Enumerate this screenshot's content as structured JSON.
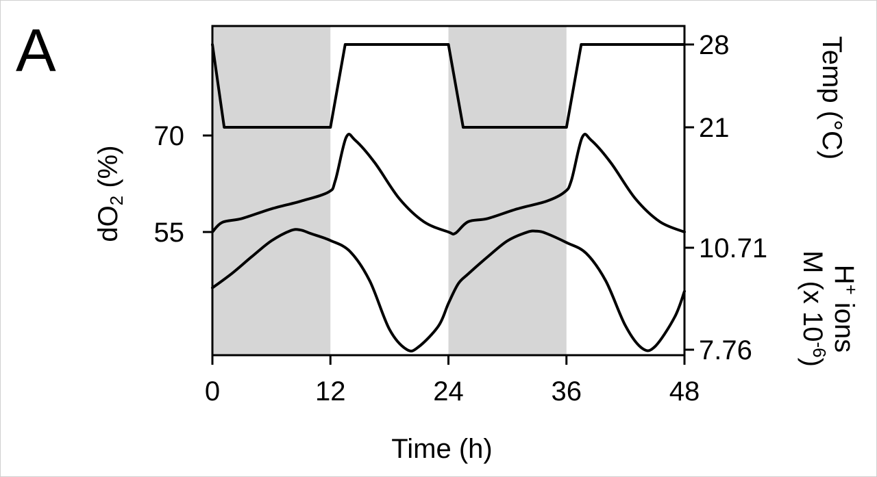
{
  "chart_data": {
    "type": "line",
    "panel_label": "A",
    "xlabel": "Time (h)",
    "x_ticks": [
      "0",
      "12",
      "24",
      "36",
      "48"
    ],
    "xlim": [
      0,
      48
    ],
    "dark_periods": [
      [
        0,
        12
      ],
      [
        24,
        36
      ]
    ],
    "left_axis": {
      "label": "dO",
      "label_sub": "2",
      "label_tail": " (%)",
      "ticks": [
        {
          "value": 70,
          "label": "70"
        },
        {
          "value": 55,
          "label": "55"
        }
      ]
    },
    "right_axes": [
      {
        "label": "Temp (°C)",
        "ticks": [
          {
            "value": 28,
            "label": "28"
          },
          {
            "value": 21,
            "label": "21"
          }
        ]
      },
      {
        "label_line1": "H",
        "label_line1_sup": "+",
        "label_line1_tail": " ions",
        "label_line2": "M (x 10",
        "label_line2_sup": "-6",
        "label_line2_tail": ")",
        "ticks": [
          {
            "value": 10.71,
            "label": "10.71"
          },
          {
            "value": 7.76,
            "label": "7.76"
          }
        ]
      }
    ],
    "series": [
      {
        "axis": "Temp (°C)",
        "points": [
          [
            0,
            28
          ],
          [
            1.2,
            21
          ],
          [
            12,
            21
          ],
          [
            13.5,
            28
          ],
          [
            24,
            28
          ],
          [
            25.5,
            21
          ],
          [
            36,
            21
          ],
          [
            37.5,
            28
          ],
          [
            48,
            28
          ]
        ]
      },
      {
        "axis": "dO2 (%)",
        "points": [
          [
            0,
            55
          ],
          [
            1,
            56.5
          ],
          [
            3,
            57.1
          ],
          [
            6,
            58.6
          ],
          [
            9,
            59.8
          ],
          [
            11.8,
            61.2
          ],
          [
            12.5,
            63
          ],
          [
            13.6,
            69.7
          ],
          [
            14.5,
            69.3
          ],
          [
            16.5,
            65.8
          ],
          [
            19,
            60.2
          ],
          [
            21.5,
            56.6
          ],
          [
            24,
            55
          ],
          [
            24.7,
            54.8
          ],
          [
            26,
            56.6
          ],
          [
            28,
            57.1
          ],
          [
            31,
            58.6
          ],
          [
            34,
            59.8
          ],
          [
            35.8,
            61.2
          ],
          [
            36.5,
            63
          ],
          [
            37.6,
            69.7
          ],
          [
            38.5,
            69.3
          ],
          [
            40.5,
            65.8
          ],
          [
            43,
            60.2
          ],
          [
            45.5,
            56.6
          ],
          [
            48,
            55
          ]
        ]
      },
      {
        "axis": "H+ ions M (x 10-6)",
        "points": [
          [
            0,
            9.55
          ],
          [
            2,
            9.97
          ],
          [
            4,
            10.45
          ],
          [
            6,
            10.91
          ],
          [
            8,
            11.21
          ],
          [
            9,
            11.22
          ],
          [
            10,
            11.12
          ],
          [
            12,
            10.92
          ],
          [
            14,
            10.6
          ],
          [
            16,
            9.75
          ],
          [
            18,
            8.35
          ],
          [
            19.8,
            7.76
          ],
          [
            21,
            7.85
          ],
          [
            23,
            8.45
          ],
          [
            24,
            9.1
          ],
          [
            25,
            9.67
          ],
          [
            26,
            9.95
          ],
          [
            28,
            10.45
          ],
          [
            30,
            10.91
          ],
          [
            32,
            11.16
          ],
          [
            33,
            11.19
          ],
          [
            34,
            11.12
          ],
          [
            36,
            10.86
          ],
          [
            38,
            10.55
          ],
          [
            40,
            9.75
          ],
          [
            42,
            8.45
          ],
          [
            43.7,
            7.8
          ],
          [
            45,
            7.85
          ],
          [
            47,
            8.7
          ],
          [
            48,
            9.45
          ]
        ]
      }
    ]
  }
}
